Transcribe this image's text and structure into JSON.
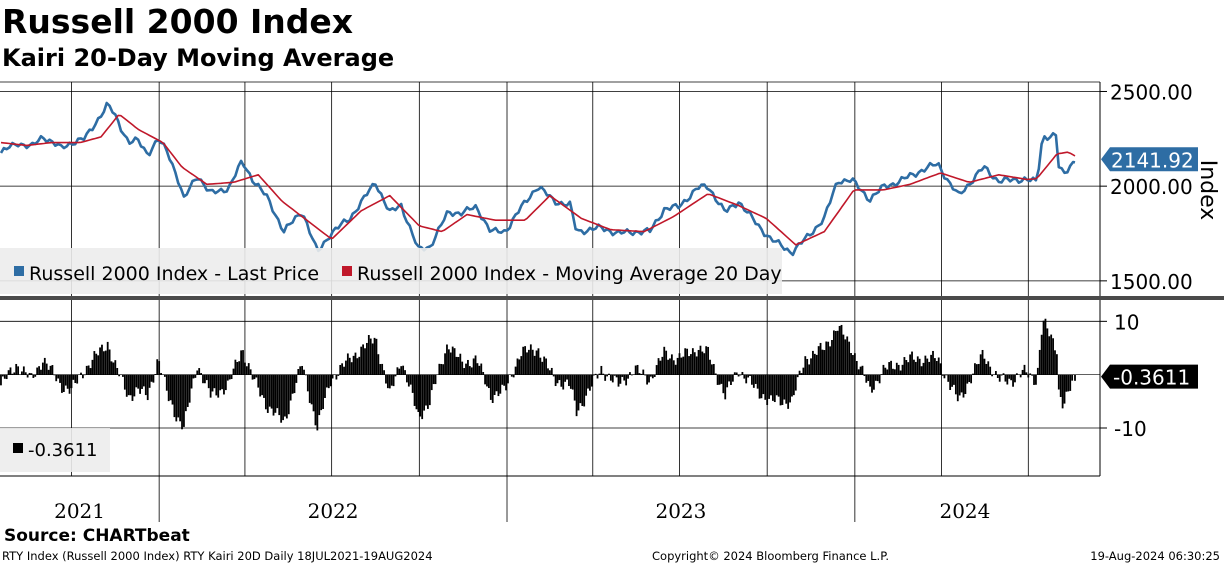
{
  "header": {
    "title": "Russell 2000 Index",
    "subtitle": "Kairi 20-Day Moving Average"
  },
  "footer": {
    "source": "Source: CHARTbeat",
    "description": "RTY Index (Russell 2000 Index) RTY Kairi 20D  Daily 18JUL2021-19AUG2024",
    "copyright": "Copyright© 2024 Bloomberg Finance L.P.",
    "timestamp": "19-Aug-2024 06:30:25"
  },
  "colors": {
    "price": "#2e6da4",
    "ma": "#c0182a",
    "kairi": "#000000",
    "grid": "#000000",
    "legend_bg": "#ececec",
    "last_price_tag": "#2e6da4"
  },
  "chart_data": [
    {
      "type": "line",
      "title": "Russell 2000 Index",
      "ylabel": "Index",
      "ylim": [
        1420,
        2550
      ],
      "yticks": [
        "2500.00",
        "2000.00",
        "1500.00"
      ],
      "last_value_label": "2141.92",
      "x_range": [
        "18JUL2021",
        "19AUG2024"
      ],
      "x_year_labels": [
        "2021",
        "2022",
        "2023",
        "2024"
      ],
      "legend": [
        "Russell 2000 Index - Last Price",
        "Russell 2000 Index - Moving Average 20 Day"
      ],
      "series": [
        {
          "name": "Russell 2000 Index - Last Price",
          "points": [
            [
              "2021-07-19",
              2175
            ],
            [
              "2021-08-05",
              2230
            ],
            [
              "2021-08-20",
              2205
            ],
            [
              "2021-09-01",
              2265
            ],
            [
              "2021-09-20",
              2200
            ],
            [
              "2021-10-01",
              2230
            ],
            [
              "2021-10-15",
              2250
            ],
            [
              "2021-11-08",
              2430
            ],
            [
              "2021-11-15",
              2380
            ],
            [
              "2021-11-30",
              2230
            ],
            [
              "2021-12-10",
              2240
            ],
            [
              "2021-12-20",
              2170
            ],
            [
              "2021-12-31",
              2245
            ],
            [
              "2022-01-10",
              2180
            ],
            [
              "2022-01-20",
              2050
            ],
            [
              "2022-01-27",
              1930
            ],
            [
              "2022-02-10",
              2060
            ],
            [
              "2022-02-24",
              1960
            ],
            [
              "2022-03-15",
              1990
            ],
            [
              "2022-03-29",
              2130
            ],
            [
              "2022-04-10",
              2030
            ],
            [
              "2022-04-25",
              1935
            ],
            [
              "2022-05-12",
              1760
            ],
            [
              "2022-05-31",
              1870
            ],
            [
              "2022-06-16",
              1650
            ],
            [
              "2022-06-30",
              1750
            ],
            [
              "2022-07-20",
              1830
            ],
            [
              "2022-08-16",
              2020
            ],
            [
              "2022-08-31",
              1860
            ],
            [
              "2022-09-12",
              1900
            ],
            [
              "2022-09-30",
              1665
            ],
            [
              "2022-10-12",
              1680
            ],
            [
              "2022-10-31",
              1860
            ],
            [
              "2022-11-15",
              1860
            ],
            [
              "2022-11-30",
              1890
            ],
            [
              "2022-12-15",
              1760
            ],
            [
              "2022-12-30",
              1760
            ],
            [
              "2023-01-15",
              1880
            ],
            [
              "2023-02-02",
              2000
            ],
            [
              "2023-02-20",
              1920
            ],
            [
              "2023-03-08",
              1900
            ],
            [
              "2023-03-15",
              1760
            ],
            [
              "2023-04-10",
              1780
            ],
            [
              "2023-04-28",
              1750
            ],
            [
              "2023-05-15",
              1760
            ],
            [
              "2023-05-31",
              1760
            ],
            [
              "2023-06-15",
              1880
            ],
            [
              "2023-06-30",
              1890
            ],
            [
              "2023-07-20",
              1990
            ],
            [
              "2023-07-31",
              2000
            ],
            [
              "2023-08-18",
              1860
            ],
            [
              "2023-09-01",
              1920
            ],
            [
              "2023-09-20",
              1800
            ],
            [
              "2023-10-05",
              1720
            ],
            [
              "2023-10-27",
              1650
            ],
            [
              "2023-11-10",
              1720
            ],
            [
              "2023-11-30",
              1830
            ],
            [
              "2023-12-14",
              2030
            ],
            [
              "2023-12-29",
              2030
            ],
            [
              "2024-01-17",
              1930
            ],
            [
              "2024-02-01",
              2000
            ],
            [
              "2024-02-15",
              2020
            ],
            [
              "2024-03-01",
              2060
            ],
            [
              "2024-03-28",
              2120
            ],
            [
              "2024-04-10",
              2010
            ],
            [
              "2024-04-19",
              1950
            ],
            [
              "2024-05-15",
              2100
            ],
            [
              "2024-05-30",
              2030
            ],
            [
              "2024-06-14",
              2030
            ],
            [
              "2024-06-28",
              2040
            ],
            [
              "2024-07-10",
              2020
            ],
            [
              "2024-07-16",
              2260
            ],
            [
              "2024-07-31",
              2270
            ],
            [
              "2024-08-02",
              2100
            ],
            [
              "2024-08-07",
              2060
            ],
            [
              "2024-08-19",
              2141.92
            ]
          ]
        },
        {
          "name": "Russell 2000 Index - Moving Average 20 Day",
          "points": [
            [
              "2021-07-19",
              2230
            ],
            [
              "2021-08-15",
              2215
            ],
            [
              "2021-09-10",
              2230
            ],
            [
              "2021-10-10",
              2230
            ],
            [
              "2021-11-01",
              2260
            ],
            [
              "2021-11-20",
              2380
            ],
            [
              "2021-12-10",
              2300
            ],
            [
              "2022-01-05",
              2230
            ],
            [
              "2022-01-25",
              2100
            ],
            [
              "2022-02-20",
              2010
            ],
            [
              "2022-03-20",
              2020
            ],
            [
              "2022-04-15",
              2060
            ],
            [
              "2022-05-10",
              1920
            ],
            [
              "2022-06-05",
              1820
            ],
            [
              "2022-07-01",
              1720
            ],
            [
              "2022-08-01",
              1870
            ],
            [
              "2022-08-31",
              1950
            ],
            [
              "2022-10-01",
              1790
            ],
            [
              "2022-10-25",
              1760
            ],
            [
              "2022-11-20",
              1850
            ],
            [
              "2022-12-20",
              1820
            ],
            [
              "2023-01-20",
              1820
            ],
            [
              "2023-02-15",
              1950
            ],
            [
              "2023-03-20",
              1830
            ],
            [
              "2023-04-20",
              1770
            ],
            [
              "2023-05-25",
              1760
            ],
            [
              "2023-06-25",
              1840
            ],
            [
              "2023-07-31",
              1960
            ],
            [
              "2023-08-31",
              1900
            ],
            [
              "2023-09-30",
              1830
            ],
            [
              "2023-10-31",
              1690
            ],
            [
              "2023-11-30",
              1760
            ],
            [
              "2023-12-31",
              1980
            ],
            [
              "2024-01-31",
              1980
            ],
            [
              "2024-02-28",
              2010
            ],
            [
              "2024-03-31",
              2070
            ],
            [
              "2024-04-30",
              2020
            ],
            [
              "2024-05-31",
              2060
            ],
            [
              "2024-06-30",
              2035
            ],
            [
              "2024-07-10",
              2040
            ],
            [
              "2024-07-31",
              2170
            ],
            [
              "2024-08-12",
              2180
            ],
            [
              "2024-08-19",
              2160
            ]
          ]
        }
      ]
    },
    {
      "type": "bar",
      "title": "Kairi 20D",
      "ylim": [
        -19,
        14
      ],
      "yticks": [
        "10",
        "-10"
      ],
      "last_value_label": "-0.3611",
      "legend": [
        "-0.3611"
      ],
      "points": [
        [
          "2021-07-19",
          -2
        ],
        [
          "2021-08-05",
          2
        ],
        [
          "2021-08-20",
          -1
        ],
        [
          "2021-09-01",
          3
        ],
        [
          "2021-09-20",
          -2
        ],
        [
          "2021-10-01",
          -3
        ],
        [
          "2021-10-15",
          1
        ],
        [
          "2021-11-08",
          6
        ],
        [
          "2021-11-15",
          2
        ],
        [
          "2021-11-30",
          -4
        ],
        [
          "2021-12-10",
          -3
        ],
        [
          "2021-12-20",
          -4
        ],
        [
          "2021-12-31",
          3
        ],
        [
          "2022-01-10",
          -4
        ],
        [
          "2022-01-20",
          -8
        ],
        [
          "2022-01-27",
          -10
        ],
        [
          "2022-02-10",
          2
        ],
        [
          "2022-02-24",
          -4
        ],
        [
          "2022-03-15",
          -2
        ],
        [
          "2022-03-29",
          5
        ],
        [
          "2022-04-10",
          -1
        ],
        [
          "2022-04-25",
          -6
        ],
        [
          "2022-05-12",
          -9
        ],
        [
          "2022-05-31",
          2
        ],
        [
          "2022-06-16",
          -10
        ],
        [
          "2022-06-30",
          -1
        ],
        [
          "2022-07-20",
          3
        ],
        [
          "2022-08-16",
          7
        ],
        [
          "2022-08-31",
          -4
        ],
        [
          "2022-09-12",
          3
        ],
        [
          "2022-09-30",
          -8
        ],
        [
          "2022-10-12",
          -5
        ],
        [
          "2022-10-31",
          6
        ],
        [
          "2022-11-15",
          2
        ],
        [
          "2022-11-30",
          3
        ],
        [
          "2022-12-15",
          -4
        ],
        [
          "2022-12-30",
          -3
        ],
        [
          "2023-01-15",
          4
        ],
        [
          "2023-02-02",
          5
        ],
        [
          "2023-02-20",
          -1
        ],
        [
          "2023-03-08",
          -2
        ],
        [
          "2023-03-15",
          -7
        ],
        [
          "2023-04-10",
          1
        ],
        [
          "2023-04-28",
          -2
        ],
        [
          "2023-05-15",
          1
        ],
        [
          "2023-05-31",
          -1
        ],
        [
          "2023-06-15",
          4
        ],
        [
          "2023-06-30",
          3
        ],
        [
          "2023-07-20",
          5
        ],
        [
          "2023-07-31",
          4
        ],
        [
          "2023-08-18",
          -4
        ],
        [
          "2023-09-01",
          1
        ],
        [
          "2023-09-20",
          -3
        ],
        [
          "2023-10-05",
          -5
        ],
        [
          "2023-10-27",
          -5
        ],
        [
          "2023-11-10",
          3
        ],
        [
          "2023-11-30",
          5
        ],
        [
          "2023-12-14",
          9
        ],
        [
          "2023-12-29",
          5
        ],
        [
          "2024-01-17",
          -3
        ],
        [
          "2024-02-01",
          1
        ],
        [
          "2024-02-15",
          2
        ],
        [
          "2024-03-01",
          3
        ],
        [
          "2024-03-28",
          3
        ],
        [
          "2024-04-10",
          -2
        ],
        [
          "2024-04-19",
          -5
        ],
        [
          "2024-05-15",
          4
        ],
        [
          "2024-05-30",
          -1
        ],
        [
          "2024-06-14",
          -1
        ],
        [
          "2024-06-28",
          0.5
        ],
        [
          "2024-07-10",
          -1
        ],
        [
          "2024-07-16",
          10
        ],
        [
          "2024-07-31",
          5
        ],
        [
          "2024-08-02",
          -3
        ],
        [
          "2024-08-07",
          -6
        ],
        [
          "2024-08-19",
          -0.3611
        ]
      ]
    }
  ]
}
